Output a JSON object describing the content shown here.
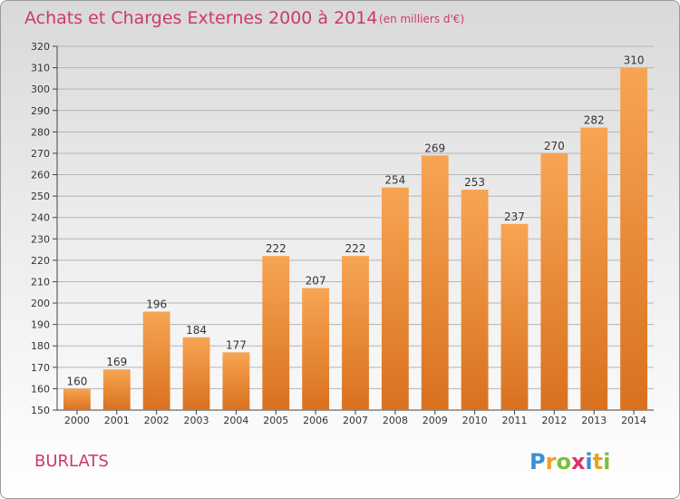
{
  "header": {
    "title": "Achats et Charges Externes 2000 à 2014",
    "unit": "(en milliers d'€)"
  },
  "place": "BURLATS",
  "logo": {
    "letters": [
      "P",
      "r",
      "o",
      "x",
      "i",
      "t",
      "i"
    ],
    "colors": [
      "#3a8fd6",
      "#f0a020",
      "#7fbf3a",
      "#e0306a",
      "#3a8fd6",
      "#f0a020",
      "#7fbf3a"
    ]
  },
  "colors": {
    "bar_top": "#f7a553",
    "bar_bottom": "#d9711f",
    "title": "#cc3a66",
    "grid": "#b5b5b5"
  },
  "chart_data": {
    "type": "bar",
    "title": "Achats et Charges Externes 2000 à 2014",
    "subtitle": "(en milliers d'€)",
    "categories": [
      "2000",
      "2001",
      "2002",
      "2003",
      "2004",
      "2005",
      "2006",
      "2007",
      "2008",
      "2009",
      "2010",
      "2011",
      "2012",
      "2013",
      "2014"
    ],
    "values": [
      160,
      169,
      196,
      184,
      177,
      222,
      207,
      222,
      254,
      269,
      253,
      237,
      270,
      282,
      310
    ],
    "ylim": [
      150,
      320
    ],
    "yticks": [
      150,
      160,
      170,
      180,
      190,
      200,
      210,
      220,
      230,
      240,
      250,
      260,
      270,
      280,
      290,
      300,
      310,
      320
    ],
    "grid": true,
    "xlabel": "",
    "ylabel": ""
  }
}
